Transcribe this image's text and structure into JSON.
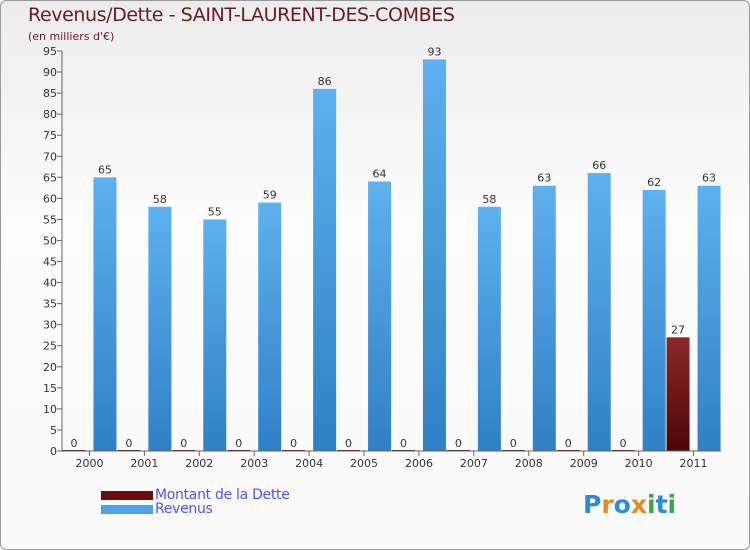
{
  "title": "Revenus/Dette - SAINT-LAURENT-DES-COMBES",
  "subtitle": "(en milliers d'€)",
  "legend": [
    {
      "label": "Montant de la Dette",
      "color": "#6b0d0d"
    },
    {
      "label": "Revenus",
      "color": "#4da3e6"
    }
  ],
  "logo": {
    "letters": [
      "P",
      "r",
      "o",
      "x",
      "i",
      "t",
      "i"
    ],
    "colors": [
      "#2e8ad6",
      "#e3892a",
      "#2e8ad6",
      "#e3892a",
      "#3aa64a",
      "#2e8ad6",
      "#3aa64a"
    ]
  },
  "chart_data": {
    "type": "bar",
    "title": "Revenus/Dette - SAINT-LAURENT-DES-COMBES",
    "ylabel": "(en milliers d'€)",
    "categories": [
      "2000",
      "2001",
      "2002",
      "2003",
      "2004",
      "2005",
      "2006",
      "2007",
      "2008",
      "2009",
      "2010",
      "2011"
    ],
    "ylim": [
      0,
      95
    ],
    "ytick_step": 5,
    "grid": false,
    "legend_position": "bottom-left",
    "series": [
      {
        "name": "Montant de la Dette",
        "color": "#6b0d0d",
        "values": [
          0,
          0,
          0,
          0,
          0,
          0,
          0,
          0,
          0,
          0,
          0,
          27
        ]
      },
      {
        "name": "Revenus",
        "color": "#4da3e6",
        "values": [
          65,
          58,
          55,
          59,
          86,
          64,
          93,
          58,
          63,
          66,
          62,
          63
        ]
      }
    ]
  }
}
